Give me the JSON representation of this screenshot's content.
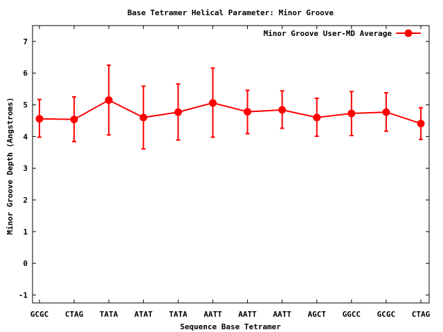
{
  "chart_data": {
    "type": "line",
    "title": "Base Tetramer Helical Parameter: Minor Groove",
    "xlabel": "Sequence Base Tetramer",
    "ylabel": "Minor Groove Depth (Angstroms)",
    "ylim": [
      -1.25,
      7.5
    ],
    "yticks": [
      "-1",
      "0",
      "1",
      "2",
      "3",
      "4",
      "5",
      "6",
      "7"
    ],
    "categories": [
      "GCGC",
      "CTAG",
      "TATA",
      "ATAT",
      "TATA",
      "AATT",
      "AATT",
      "AATT",
      "AGCT",
      "GGCC",
      "GCGC",
      "CTAG"
    ],
    "grid": false,
    "legend_position": "top-right",
    "series": [
      {
        "name": "Minor Groove User-MD Average",
        "color": "#ff0000",
        "marker": "circle",
        "values": [
          4.56,
          4.54,
          5.15,
          4.6,
          4.77,
          5.06,
          4.78,
          4.84,
          4.6,
          4.73,
          4.77,
          4.41
        ],
        "err_low": [
          3.98,
          3.84,
          4.05,
          3.61,
          3.89,
          3.98,
          4.09,
          4.26,
          4.01,
          4.03,
          4.17,
          3.91
        ],
        "err_high": [
          5.17,
          5.25,
          6.25,
          5.59,
          5.66,
          6.16,
          5.46,
          5.44,
          5.21,
          5.42,
          5.38,
          4.91
        ]
      }
    ]
  }
}
